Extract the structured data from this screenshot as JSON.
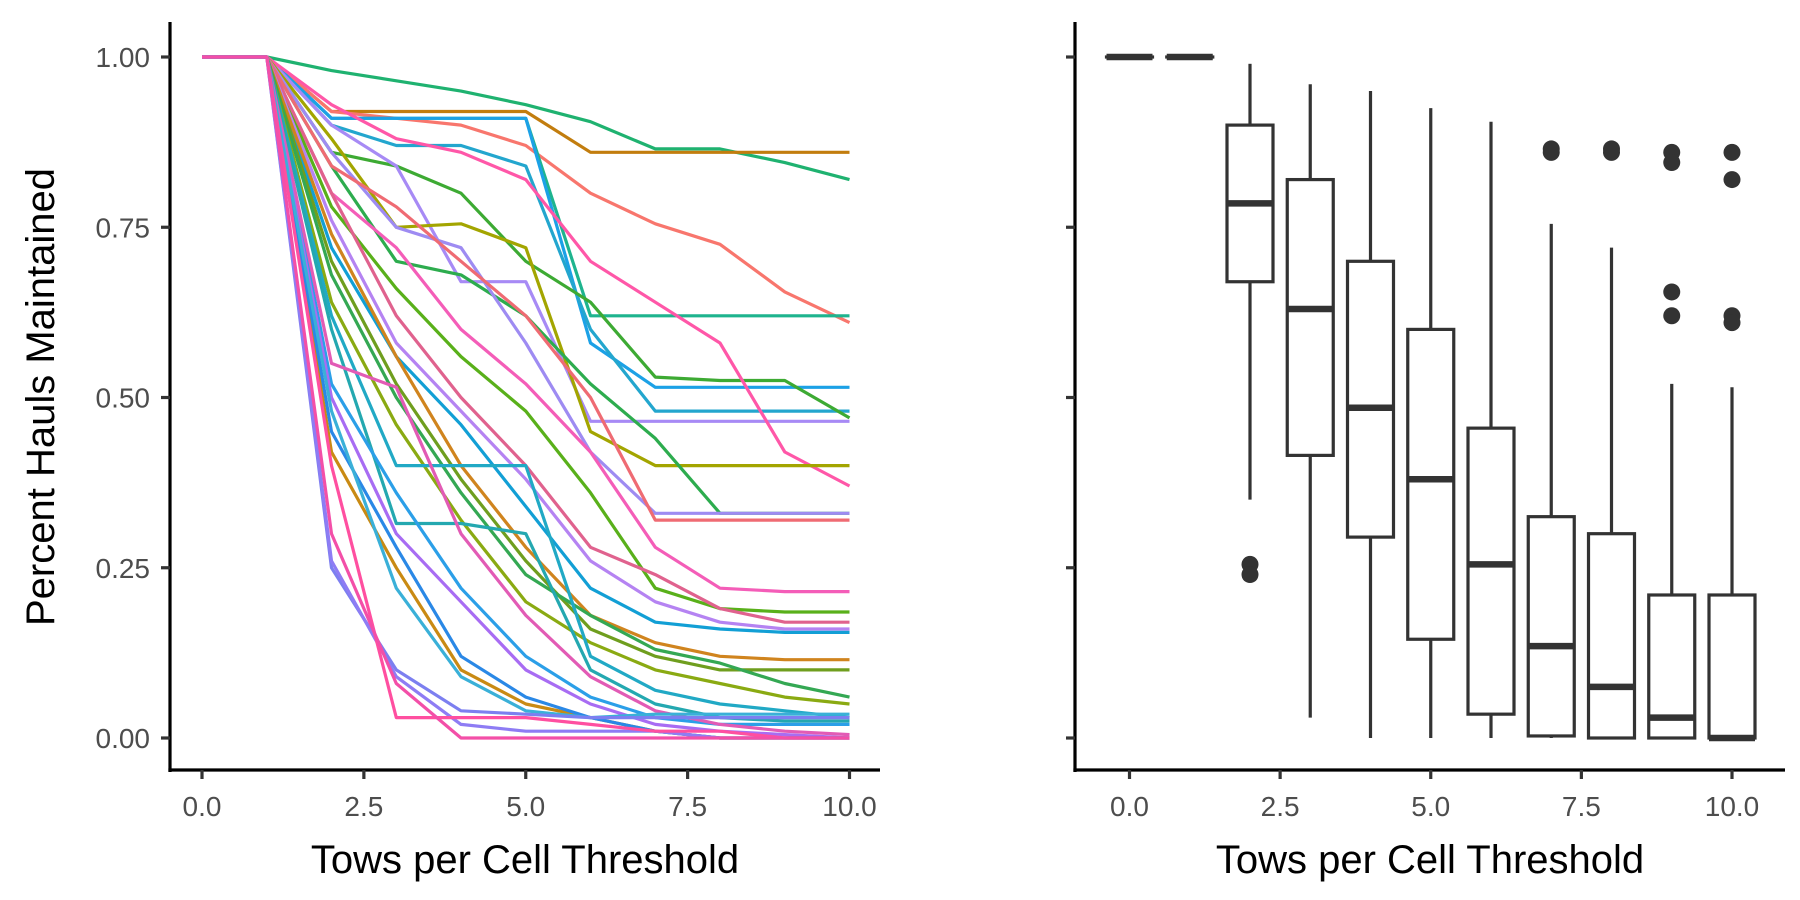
{
  "chart_data": [
    {
      "type": "line",
      "xlabel": "Tows per Cell Threshold",
      "ylabel": "Percent Hauls Maintained",
      "xlim": [
        0,
        10
      ],
      "ylim": [
        0,
        1
      ],
      "x_ticks": [
        "0.0",
        "2.5",
        "5.0",
        "7.5",
        "10.0"
      ],
      "y_ticks": [
        "0.00",
        "0.25",
        "0.50",
        "0.75",
        "1.00"
      ],
      "grid": false,
      "legend": "none",
      "x": [
        0,
        1,
        2,
        3,
        4,
        5,
        6,
        7,
        8,
        9,
        10
      ],
      "series": [
        {
          "color": "#1FB270",
          "values": [
            1,
            1,
            0.98,
            0.965,
            0.95,
            0.93,
            0.905,
            0.865,
            0.865,
            0.845,
            0.82
          ]
        },
        {
          "color": "#C27D0E",
          "values": [
            1,
            1,
            0.92,
            0.92,
            0.92,
            0.92,
            0.86,
            0.86,
            0.86,
            0.86,
            0.86
          ]
        },
        {
          "color": "#F8766D",
          "values": [
            1,
            1,
            0.92,
            0.91,
            0.9,
            0.87,
            0.8,
            0.755,
            0.725,
            0.655,
            0.61
          ]
        },
        {
          "color": "#1EB48E",
          "values": [
            1,
            1,
            0.91,
            0.91,
            0.91,
            0.91,
            0.62,
            0.62,
            0.62,
            0.62,
            0.62
          ]
        },
        {
          "color": "#1CA1E6",
          "values": [
            1,
            1,
            0.91,
            0.91,
            0.91,
            0.91,
            0.58,
            0.515,
            0.515,
            0.515,
            0.515
          ]
        },
        {
          "color": "#23A6CE",
          "values": [
            1,
            1,
            0.9,
            0.87,
            0.87,
            0.84,
            0.6,
            0.48,
            0.48,
            0.48,
            0.48
          ]
        },
        {
          "color": "#3DAA33",
          "values": [
            1,
            1,
            0.86,
            0.84,
            0.8,
            0.7,
            0.64,
            0.53,
            0.525,
            0.525,
            0.47
          ]
        },
        {
          "color": "#A78AF5",
          "values": [
            1,
            1,
            0.9,
            0.84,
            0.67,
            0.67,
            0.465,
            0.465,
            0.465,
            0.465,
            0.465
          ]
        },
        {
          "color": "#FF57A8",
          "values": [
            1,
            1,
            0.93,
            0.88,
            0.86,
            0.82,
            0.7,
            0.64,
            0.58,
            0.42,
            0.37
          ]
        },
        {
          "color": "#A3A500",
          "values": [
            1,
            1,
            0.88,
            0.75,
            0.755,
            0.72,
            0.45,
            0.4,
            0.4,
            0.4,
            0.4
          ]
        },
        {
          "color": "#2DAC4E",
          "values": [
            1,
            1,
            0.84,
            0.7,
            0.68,
            0.62,
            0.52,
            0.44,
            0.33,
            0.33,
            0.33
          ]
        },
        {
          "color": "#9E8BF2",
          "values": [
            1,
            1,
            0.86,
            0.75,
            0.72,
            0.58,
            0.42,
            0.33,
            0.33,
            0.33,
            0.33
          ]
        },
        {
          "color": "#EF6B73",
          "values": [
            1,
            1,
            0.84,
            0.78,
            0.7,
            0.62,
            0.5,
            0.32,
            0.32,
            0.32,
            0.32
          ]
        },
        {
          "color": "#F45DB8",
          "values": [
            1,
            1,
            0.8,
            0.72,
            0.6,
            0.52,
            0.42,
            0.28,
            0.22,
            0.215,
            0.215
          ]
        },
        {
          "color": "#59B01A",
          "values": [
            1,
            1,
            0.78,
            0.66,
            0.56,
            0.48,
            0.36,
            0.22,
            0.19,
            0.185,
            0.185
          ]
        },
        {
          "color": "#E0628E",
          "values": [
            1,
            1,
            0.8,
            0.62,
            0.5,
            0.4,
            0.28,
            0.24,
            0.19,
            0.17,
            0.17
          ]
        },
        {
          "color": "#B583F2",
          "values": [
            1,
            1,
            0.76,
            0.58,
            0.48,
            0.38,
            0.26,
            0.2,
            0.17,
            0.16,
            0.16
          ]
        },
        {
          "color": "#129FD5",
          "values": [
            1,
            1,
            0.72,
            0.56,
            0.46,
            0.34,
            0.22,
            0.17,
            0.16,
            0.155,
            0.155
          ]
        },
        {
          "color": "#D0841E",
          "values": [
            1,
            1,
            0.74,
            0.56,
            0.4,
            0.28,
            0.18,
            0.14,
            0.12,
            0.115,
            0.115
          ]
        },
        {
          "color": "#6F9E1E",
          "values": [
            1,
            1,
            0.7,
            0.52,
            0.38,
            0.26,
            0.16,
            0.12,
            0.1,
            0.1,
            0.1
          ]
        },
        {
          "color": "#34A853",
          "values": [
            1,
            1,
            0.68,
            0.5,
            0.36,
            0.24,
            0.18,
            0.13,
            0.11,
            0.08,
            0.06
          ]
        },
        {
          "color": "#8AAA12",
          "values": [
            1,
            1,
            0.64,
            0.46,
            0.32,
            0.2,
            0.14,
            0.1,
            0.08,
            0.06,
            0.05
          ]
        },
        {
          "color": "#21A9C5",
          "values": [
            1,
            1,
            0.62,
            0.4,
            0.4,
            0.4,
            0.12,
            0.07,
            0.05,
            0.04,
            0.03
          ]
        },
        {
          "color": "#24A8B0",
          "values": [
            1,
            1,
            0.6,
            0.315,
            0.315,
            0.3,
            0.1,
            0.05,
            0.03,
            0.025,
            0.025
          ]
        },
        {
          "color": "#2B9FE8",
          "values": [
            1,
            1,
            0.52,
            0.36,
            0.22,
            0.12,
            0.06,
            0.03,
            0.02,
            0.02,
            0.02
          ]
        },
        {
          "color": "#E25BB5",
          "values": [
            1,
            1,
            0.55,
            0.515,
            0.3,
            0.18,
            0.09,
            0.04,
            0.02,
            0.01,
            0.005
          ]
        },
        {
          "color": "#A86CF3",
          "values": [
            1,
            1,
            0.5,
            0.3,
            0.2,
            0.1,
            0.05,
            0.02,
            0.01,
            0.005,
            0.0
          ]
        },
        {
          "color": "#C98A13",
          "values": [
            1,
            1,
            0.42,
            0.25,
            0.1,
            0.05,
            0.03,
            0.01,
            0.0,
            0.0,
            0.0
          ]
        },
        {
          "color": "#2A88E6",
          "values": [
            1,
            1,
            0.45,
            0.28,
            0.12,
            0.06,
            0.03,
            0.01,
            0.0,
            0.0,
            0.0
          ]
        },
        {
          "color": "#3AB0D8",
          "values": [
            1,
            1,
            0.48,
            0.22,
            0.09,
            0.04,
            0.03,
            0.035,
            0.035,
            0.035,
            0.035
          ]
        },
        {
          "color": "#7C7FF0",
          "values": [
            1,
            1,
            0.25,
            0.1,
            0.04,
            0.035,
            0.03,
            0.03,
            0.03,
            0.03,
            0.03
          ]
        },
        {
          "color": "#8E7CF4",
          "values": [
            1,
            1,
            0.26,
            0.09,
            0.02,
            0.01,
            0.01,
            0.01,
            0.0,
            0.0,
            0.0
          ]
        },
        {
          "color": "#FF4FA0",
          "values": [
            1,
            1,
            0.4,
            0.03,
            0.03,
            0.03,
            0.02,
            0.01,
            0.01,
            0.0,
            0.0
          ]
        },
        {
          "color": "#F34FA8",
          "values": [
            1,
            1,
            0.3,
            0.08,
            0.0,
            0.0,
            0.0,
            0.0,
            0.0,
            0.0,
            0.0
          ]
        }
      ]
    },
    {
      "type": "box",
      "xlabel": "Tows per Cell Threshold",
      "ylabel": "",
      "xlim": [
        0,
        10
      ],
      "ylim": [
        0,
        1
      ],
      "x_ticks": [
        "0.0",
        "2.5",
        "5.0",
        "7.5",
        "10.0"
      ],
      "grid": false,
      "boxes": [
        {
          "x": 0,
          "lower_whisker": 1,
          "q1": 1,
          "median": 1,
          "q3": 1,
          "upper_whisker": 1,
          "outliers": []
        },
        {
          "x": 1,
          "lower_whisker": 1,
          "q1": 1,
          "median": 1,
          "q3": 1,
          "upper_whisker": 1,
          "outliers": []
        },
        {
          "x": 2,
          "lower_whisker": 0.35,
          "q1": 0.67,
          "median": 0.785,
          "q3": 0.9,
          "upper_whisker": 0.99,
          "outliers": [
            0.255,
            0.24
          ]
        },
        {
          "x": 3,
          "lower_whisker": 0.03,
          "q1": 0.415,
          "median": 0.63,
          "q3": 0.82,
          "upper_whisker": 0.96,
          "outliers": []
        },
        {
          "x": 4,
          "lower_whisker": 0.0,
          "q1": 0.295,
          "median": 0.485,
          "q3": 0.7,
          "upper_whisker": 0.95,
          "outliers": []
        },
        {
          "x": 5,
          "lower_whisker": 0.0,
          "q1": 0.145,
          "median": 0.38,
          "q3": 0.6,
          "upper_whisker": 0.925,
          "outliers": []
        },
        {
          "x": 6,
          "lower_whisker": 0.0,
          "q1": 0.035,
          "median": 0.255,
          "q3": 0.455,
          "upper_whisker": 0.905,
          "outliers": []
        },
        {
          "x": 7,
          "lower_whisker": 0.0,
          "q1": 0.003,
          "median": 0.135,
          "q3": 0.325,
          "upper_whisker": 0.755,
          "outliers": [
            0.865,
            0.86
          ]
        },
        {
          "x": 8,
          "lower_whisker": 0.0,
          "q1": 0.0,
          "median": 0.075,
          "q3": 0.3,
          "upper_whisker": 0.72,
          "outliers": [
            0.865,
            0.86
          ]
        },
        {
          "x": 9,
          "lower_whisker": 0.0,
          "q1": 0.0,
          "median": 0.03,
          "q3": 0.21,
          "upper_whisker": 0.52,
          "outliers": [
            0.86,
            0.845,
            0.655,
            0.62
          ]
        },
        {
          "x": 10,
          "lower_whisker": 0.0,
          "q1": 0.0,
          "median": 0.0,
          "q3": 0.21,
          "upper_whisker": 0.515,
          "outliers": [
            0.86,
            0.82,
            0.62,
            0.61
          ]
        }
      ]
    }
  ]
}
